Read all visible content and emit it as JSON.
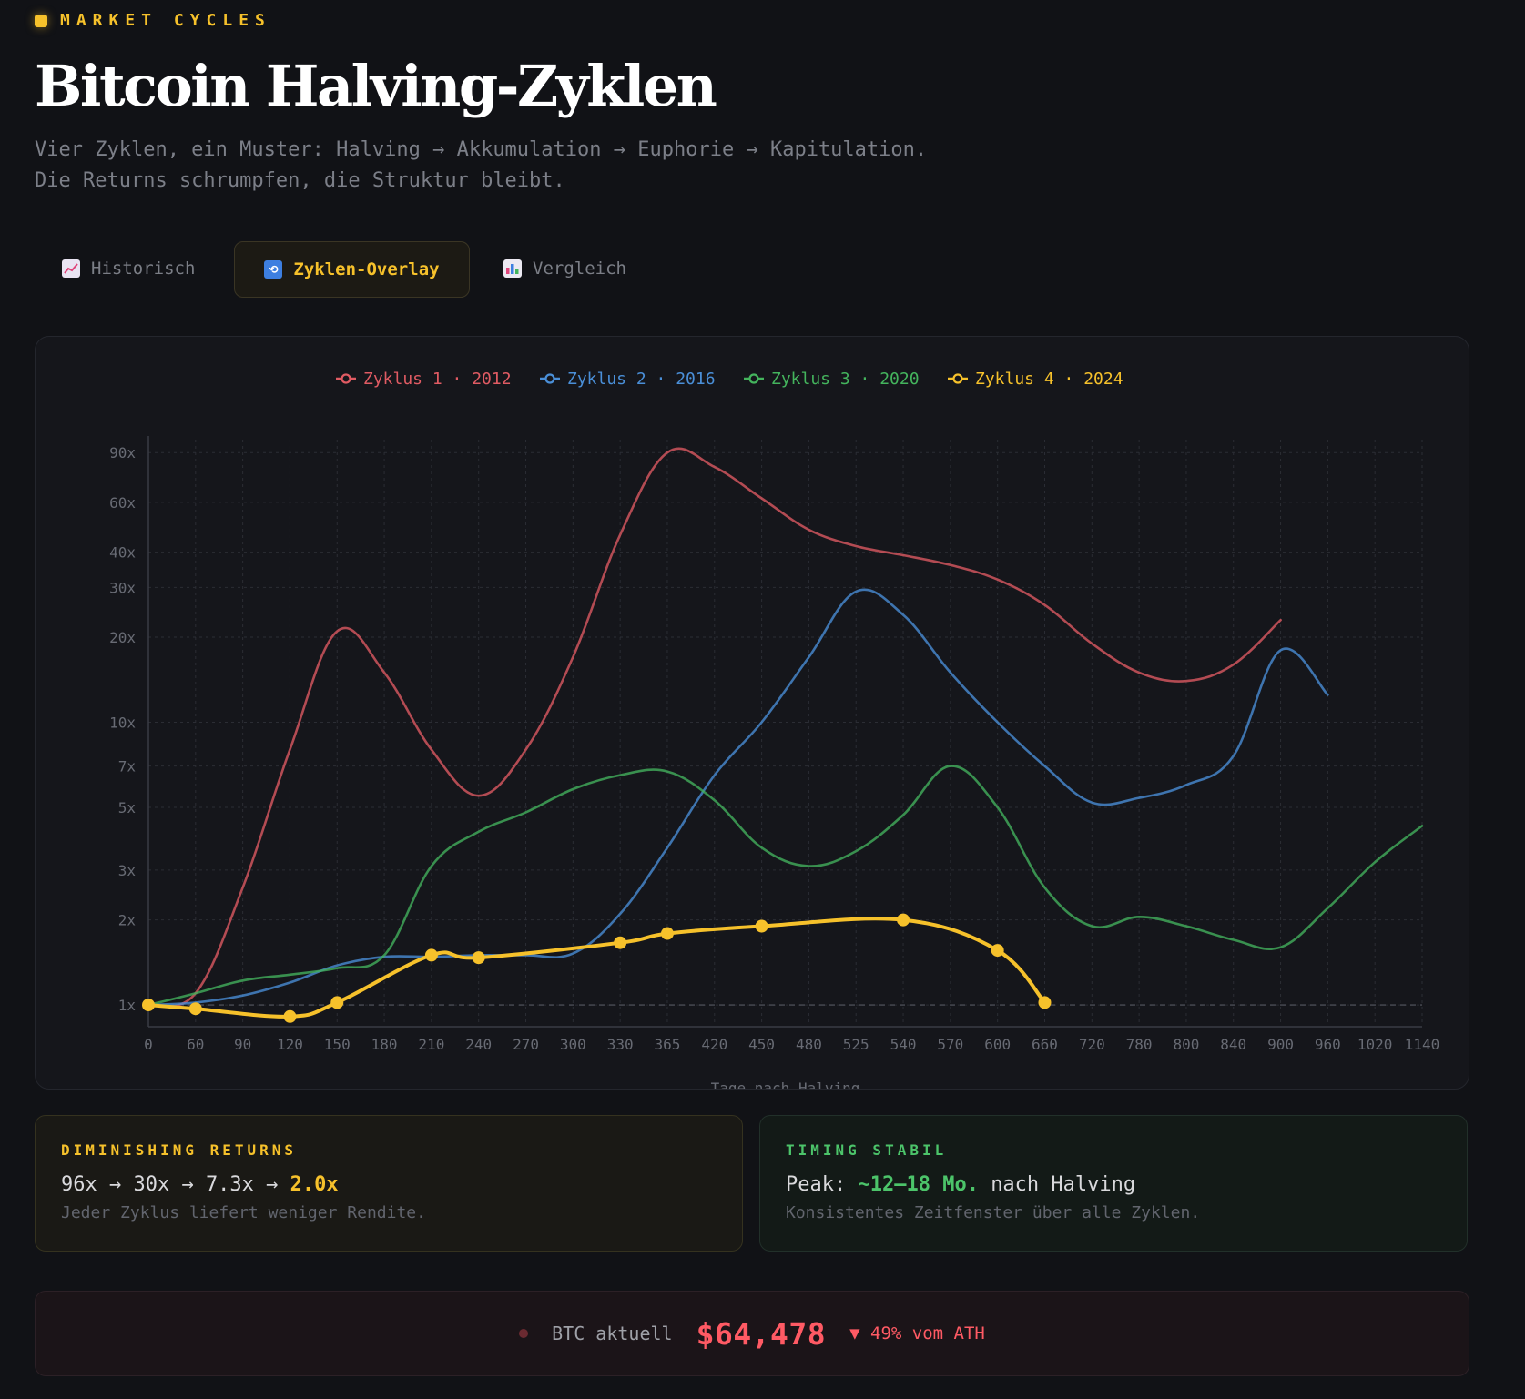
{
  "header": {
    "eyebrow": "MARKET CYCLES",
    "title": "Bitcoin Halving-Zyklen",
    "subtitle_line1": "Vier Zyklen, ein Muster: Halving → Akkumulation → Euphorie → Kapitulation.",
    "subtitle_line2": "Die Returns schrumpfen, die Struktur bleibt."
  },
  "tabs": [
    {
      "label": "Historisch",
      "icon": "chart-increasing-icon",
      "active": false
    },
    {
      "label": "Zyklen-Overlay",
      "icon": "cycle-arrows-icon",
      "active": true
    },
    {
      "label": "Vergleich",
      "icon": "bar-chart-icon",
      "active": false
    }
  ],
  "colors": {
    "accent": "#f6c12b",
    "cycle1": "#e05b63",
    "cycle2": "#4a8fd8",
    "cycle3": "#44b45d",
    "cycle4": "#f6c12b",
    "grid": "#2b2d34",
    "axis_text": "#686b74"
  },
  "chart_data": {
    "type": "line",
    "xlabel": "Tage nach Halving",
    "ylabel": "",
    "y_scale": "log",
    "ylim": [
      0.85,
      100
    ],
    "y_ticks": [
      {
        "value": 1,
        "label": "1x"
      },
      {
        "value": 2,
        "label": "2x"
      },
      {
        "value": 3,
        "label": "3x"
      },
      {
        "value": 5,
        "label": "5x"
      },
      {
        "value": 7,
        "label": "7x"
      },
      {
        "value": 10,
        "label": "10x"
      },
      {
        "value": 20,
        "label": "20x"
      },
      {
        "value": 30,
        "label": "30x"
      },
      {
        "value": 40,
        "label": "40x"
      },
      {
        "value": 60,
        "label": "60x"
      },
      {
        "value": 90,
        "label": "90x"
      }
    ],
    "x_categories": [
      "0",
      "60",
      "90",
      "120",
      "150",
      "180",
      "210",
      "240",
      "270",
      "300",
      "330",
      "365",
      "420",
      "450",
      "480",
      "525",
      "540",
      "570",
      "600",
      "660",
      "720",
      "780",
      "800",
      "840",
      "900",
      "960",
      "1020",
      "1140"
    ],
    "grid": true,
    "legend_position": "top-center",
    "reference_line": 1,
    "series": [
      {
        "name": "Zyklus 1 · 2012",
        "color": "#e05b63",
        "markers": false,
        "values": [
          1,
          1.1,
          2.6,
          8,
          21,
          15,
          8,
          5.5,
          8,
          17,
          46,
          90,
          80,
          62,
          48,
          42,
          39,
          36,
          32,
          26,
          19,
          15,
          14,
          16,
          23
        ]
      },
      {
        "name": "Zyklus 2 · 2016",
        "color": "#4a8fd8",
        "markers": false,
        "values": [
          1,
          1.02,
          1.08,
          1.2,
          1.38,
          1.48,
          1.48,
          1.5,
          1.5,
          1.52,
          2.1,
          3.6,
          6.5,
          10,
          17,
          29,
          24,
          15,
          10,
          7,
          5.2,
          5.4,
          6,
          7.6,
          18,
          12.5
        ]
      },
      {
        "name": "Zyklus 3 · 2020",
        "color": "#44b45d",
        "markers": false,
        "values": [
          1,
          1.1,
          1.22,
          1.28,
          1.35,
          1.5,
          3.1,
          4.1,
          4.8,
          5.8,
          6.5,
          6.7,
          5.3,
          3.6,
          3.1,
          3.5,
          4.7,
          7,
          5,
          2.6,
          1.9,
          2.05,
          1.9,
          1.7,
          1.6,
          2.2,
          3.2,
          4.3
        ]
      },
      {
        "name": "Zyklus 4 · 2024",
        "color": "#f6c12b",
        "markers": true,
        "values": [
          1,
          0.97,
          null,
          0.91,
          1.02,
          null,
          1.5,
          1.47,
          null,
          null,
          1.66,
          1.79,
          null,
          1.9,
          null,
          null,
          2.0,
          null,
          1.56,
          1.02
        ]
      }
    ]
  },
  "insights": [
    {
      "label": "DIMINISHING RETURNS",
      "sequence_prefix": "96x → 30x → 7.3x →",
      "highlight": "2.0x",
      "note": "Jeder Zyklus liefert weniger Rendite."
    },
    {
      "label": "TIMING STABIL",
      "prefix": "Peak:",
      "highlight": "~12–18 Mo.",
      "suffix": "nach Halving",
      "note": "Konsistentes Zeitfenster über alle Zyklen."
    }
  ],
  "price": {
    "label": "BTC aktuell",
    "value": "$64,478",
    "change": "▼ 49% vom ATH"
  }
}
